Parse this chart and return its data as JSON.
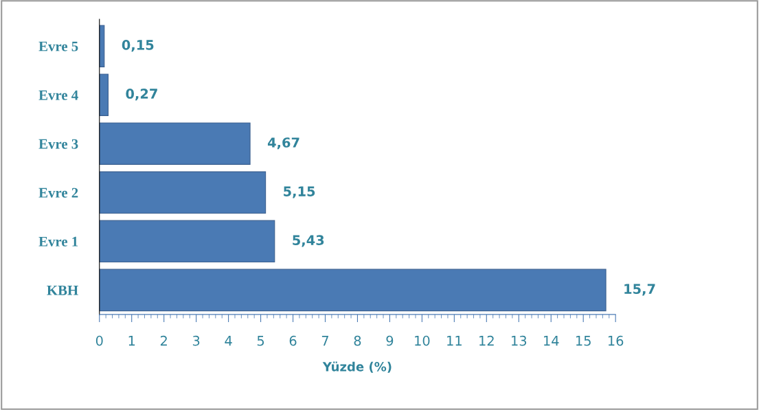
{
  "chart_data": {
    "type": "bar",
    "orientation": "horizontal",
    "categories": [
      "Evre 5",
      "Evre 4",
      "Evre 3",
      "Evre 2",
      "Evre 1",
      "KBH"
    ],
    "values": [
      0.15,
      0.27,
      4.67,
      5.15,
      5.43,
      15.7
    ],
    "value_labels": [
      "0,15",
      "0,27",
      "4,67",
      "5,15",
      "5,43",
      "15,7"
    ],
    "color": "#4a7ab4",
    "xlim": [
      0,
      16
    ],
    "xticks": [
      0,
      1,
      2,
      3,
      4,
      5,
      6,
      7,
      8,
      9,
      10,
      11,
      12,
      13,
      14,
      15,
      16
    ],
    "xlabel": "Yüzde (%)",
    "grid": false,
    "legend": false
  }
}
